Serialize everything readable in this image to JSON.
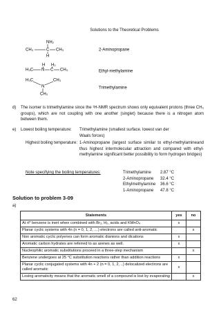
{
  "header": {
    "title": "Solutions to the Theoretical Problems"
  },
  "structures": [
    {
      "atoms": [
        "NH₂",
        "CH₃",
        "C",
        "CH₃",
        "H"
      ],
      "name": "2-Aminopropane"
    },
    {
      "atoms": [
        "H",
        "H₂",
        "H₃C",
        "N",
        "C",
        "CH₃"
      ],
      "name": "Ethyl-methylamine"
    },
    {
      "atoms": [
        "H₃C",
        "CH₃",
        "N",
        "CH₃"
      ],
      "name": "Trimethylamine"
    }
  ],
  "part_d": {
    "label": "d)",
    "text": "The isomer is trimethylamine since the ¹H-NMR spectrum shows only equivalent protons (three CH₃ groups), which are not coupling with one another (singlet) because there is a nitrogen atom between them."
  },
  "part_e": {
    "label": "e)",
    "lowest": {
      "label": "Lowest boiling temperature:",
      "text": "Trimethylamine (smallest surface. lowest van der Waals forces)"
    },
    "highest": {
      "label": "Highest boiling temperature:",
      "text": "1-Aminopropane (largest surface similar to ethyl-methylamineand thus highest intermolecular attraction and compared with ethyl-methylamine significant better possibility to form hydrogen bridges)"
    },
    "note": "Note specifying the boiling temperatures:",
    "boiling": [
      [
        "Trimethylamine",
        "2.87 °C"
      ],
      [
        "2-Aminopropane",
        "32.4 °C"
      ],
      [
        "Ethylmethylamine",
        "36.6 °C"
      ],
      [
        "1-Aminopropane",
        "47.8 °C"
      ]
    ]
  },
  "solution": {
    "title": "Solution to problem 3-09",
    "part": "a)"
  },
  "table": {
    "header": [
      "Statements",
      "yes",
      "no"
    ],
    "rows": [
      {
        "statement": "At rt* benzene is inert when combined with Br₂, H₂, acids and KMnO₄",
        "yes": "x"
      },
      {
        "statement": "Planar cyclic systems with 4n (n = 0, 1, 2, …) electrons are called anti-aromatic",
        "no": "x"
      },
      {
        "statement": "Non aromatic cyclic polyenes can form aromatic dianions and dications",
        "yes": "x"
      },
      {
        "statement": "Aromatic carbon hydrates are referred to as arenes as well.",
        "yes": "x"
      },
      {
        "statement": "Nucleophilic aromatic substitutions proceed in a three-step mechanism",
        "no": "x"
      },
      {
        "statement": "Benzene undergoes at 25 °C substitution reactions rather than addition reactions",
        "yes": "x"
      },
      {
        "statement": "Planar cyclic conjugated systems with 4n + 2 (n = 0, 1, 2, ..) delocalized electrons are called aromatic",
        "yes": "x"
      },
      {
        "statement": "Losing aromaticity means that the aromatic smell of a compound is lost by evaporating",
        "no": "x"
      }
    ]
  },
  "footer": {
    "page": "62"
  }
}
